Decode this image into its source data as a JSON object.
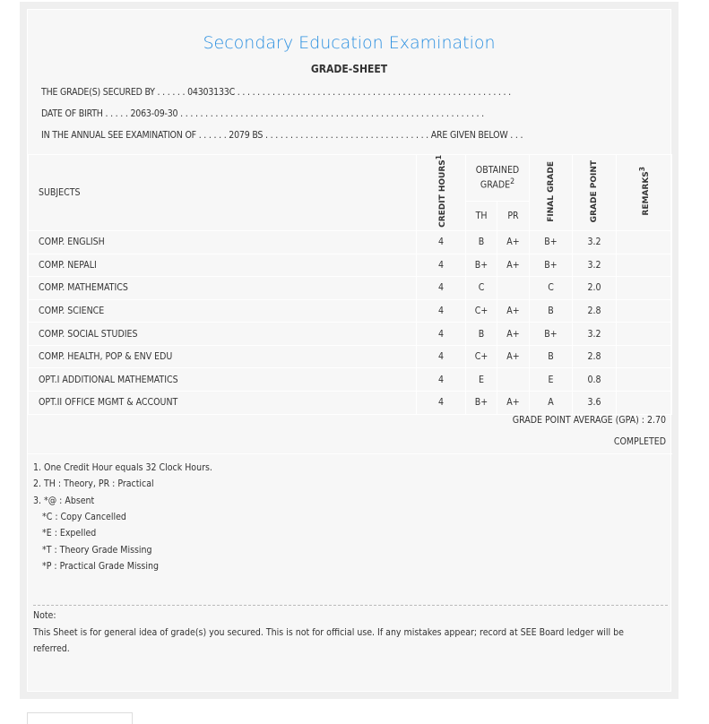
{
  "title": "Secondary Education Examination",
  "subtitle": "GRADE-SHEET",
  "info": {
    "secured_by": "THE GRADE(S) SECURED BY . . . . . . 04303133C . . . . . . . . . . . . . . . . . . . . . . . . . . . . . . . . . . . . . . . . . . . . . . . . . . . . . . .",
    "dob": "DATE OF BIRTH . . . . . 2063-09-30 . . . . . . . . . . . . . . . . . . . . . . . . . . . . . . . . . . . . . . . . . . . . . . . . . . . . . . . . . . . . .",
    "exam": "IN THE ANNUAL SEE EXAMINATION OF . . . . . . 2079 BS . . . . . . . . . . . . . . . . . . . . . . . . . . . . . . . . . ARE GIVEN BELOW . . ."
  },
  "table": {
    "headers": {
      "subjects": "SUBJECTS",
      "credit": "CREDIT HOURS",
      "credit_sup": "1",
      "obtained": "OBTAINED GRADE",
      "obtained_sup": "2",
      "th": "TH",
      "pr": "PR",
      "final": "FINAL GRADE",
      "point": "GRADE POINT",
      "remarks": "REMARKS",
      "remarks_sup": "3"
    },
    "rows": [
      {
        "subject": "COMP. ENGLISH",
        "credit": "4",
        "th": "B",
        "pr": "A+",
        "final": "B+",
        "point": "3.2",
        "remarks": ""
      },
      {
        "subject": "COMP. NEPALI",
        "credit": "4",
        "th": "B+",
        "pr": "A+",
        "final": "B+",
        "point": "3.2",
        "remarks": ""
      },
      {
        "subject": "COMP. MATHEMATICS",
        "credit": "4",
        "th": "C",
        "pr": "",
        "final": "C",
        "point": "2.0",
        "remarks": ""
      },
      {
        "subject": "COMP. SCIENCE",
        "credit": "4",
        "th": "C+",
        "pr": "A+",
        "final": "B",
        "point": "2.8",
        "remarks": ""
      },
      {
        "subject": "COMP. SOCIAL STUDIES",
        "credit": "4",
        "th": "B",
        "pr": "A+",
        "final": "B+",
        "point": "3.2",
        "remarks": ""
      },
      {
        "subject": "COMP. HEALTH, POP & ENV EDU",
        "credit": "4",
        "th": "C+",
        "pr": "A+",
        "final": "B",
        "point": "2.8",
        "remarks": ""
      },
      {
        "subject": "OPT.I ADDITIONAL MATHEMATICS",
        "credit": "4",
        "th": "E",
        "pr": "",
        "final": "E",
        "point": "0.8",
        "remarks": ""
      },
      {
        "subject": "OPT.II OFFICE MGMT & ACCOUNT",
        "credit": "4",
        "th": "B+",
        "pr": "A+",
        "final": "A",
        "point": "3.6",
        "remarks": ""
      }
    ]
  },
  "gpa": "GRADE POINT AVERAGE (GPA) : 2.70",
  "status": "COMPLETED",
  "footnotes": [
    "1. One Credit Hour equals 32 Clock Hours.",
    "2. TH : Theory, PR : Practical",
    "3. *@ : Absent",
    "*C : Copy Cancelled",
    "*E : Expelled",
    "*T : Theory Grade Missing",
    "*P : Practical Grade Missing"
  ],
  "note": {
    "label": "Note:",
    "text": "This Sheet is for general idea of grade(s) you secured. This is not for official use. If any mistakes appear; record at SEE Board ledger will be referred."
  }
}
